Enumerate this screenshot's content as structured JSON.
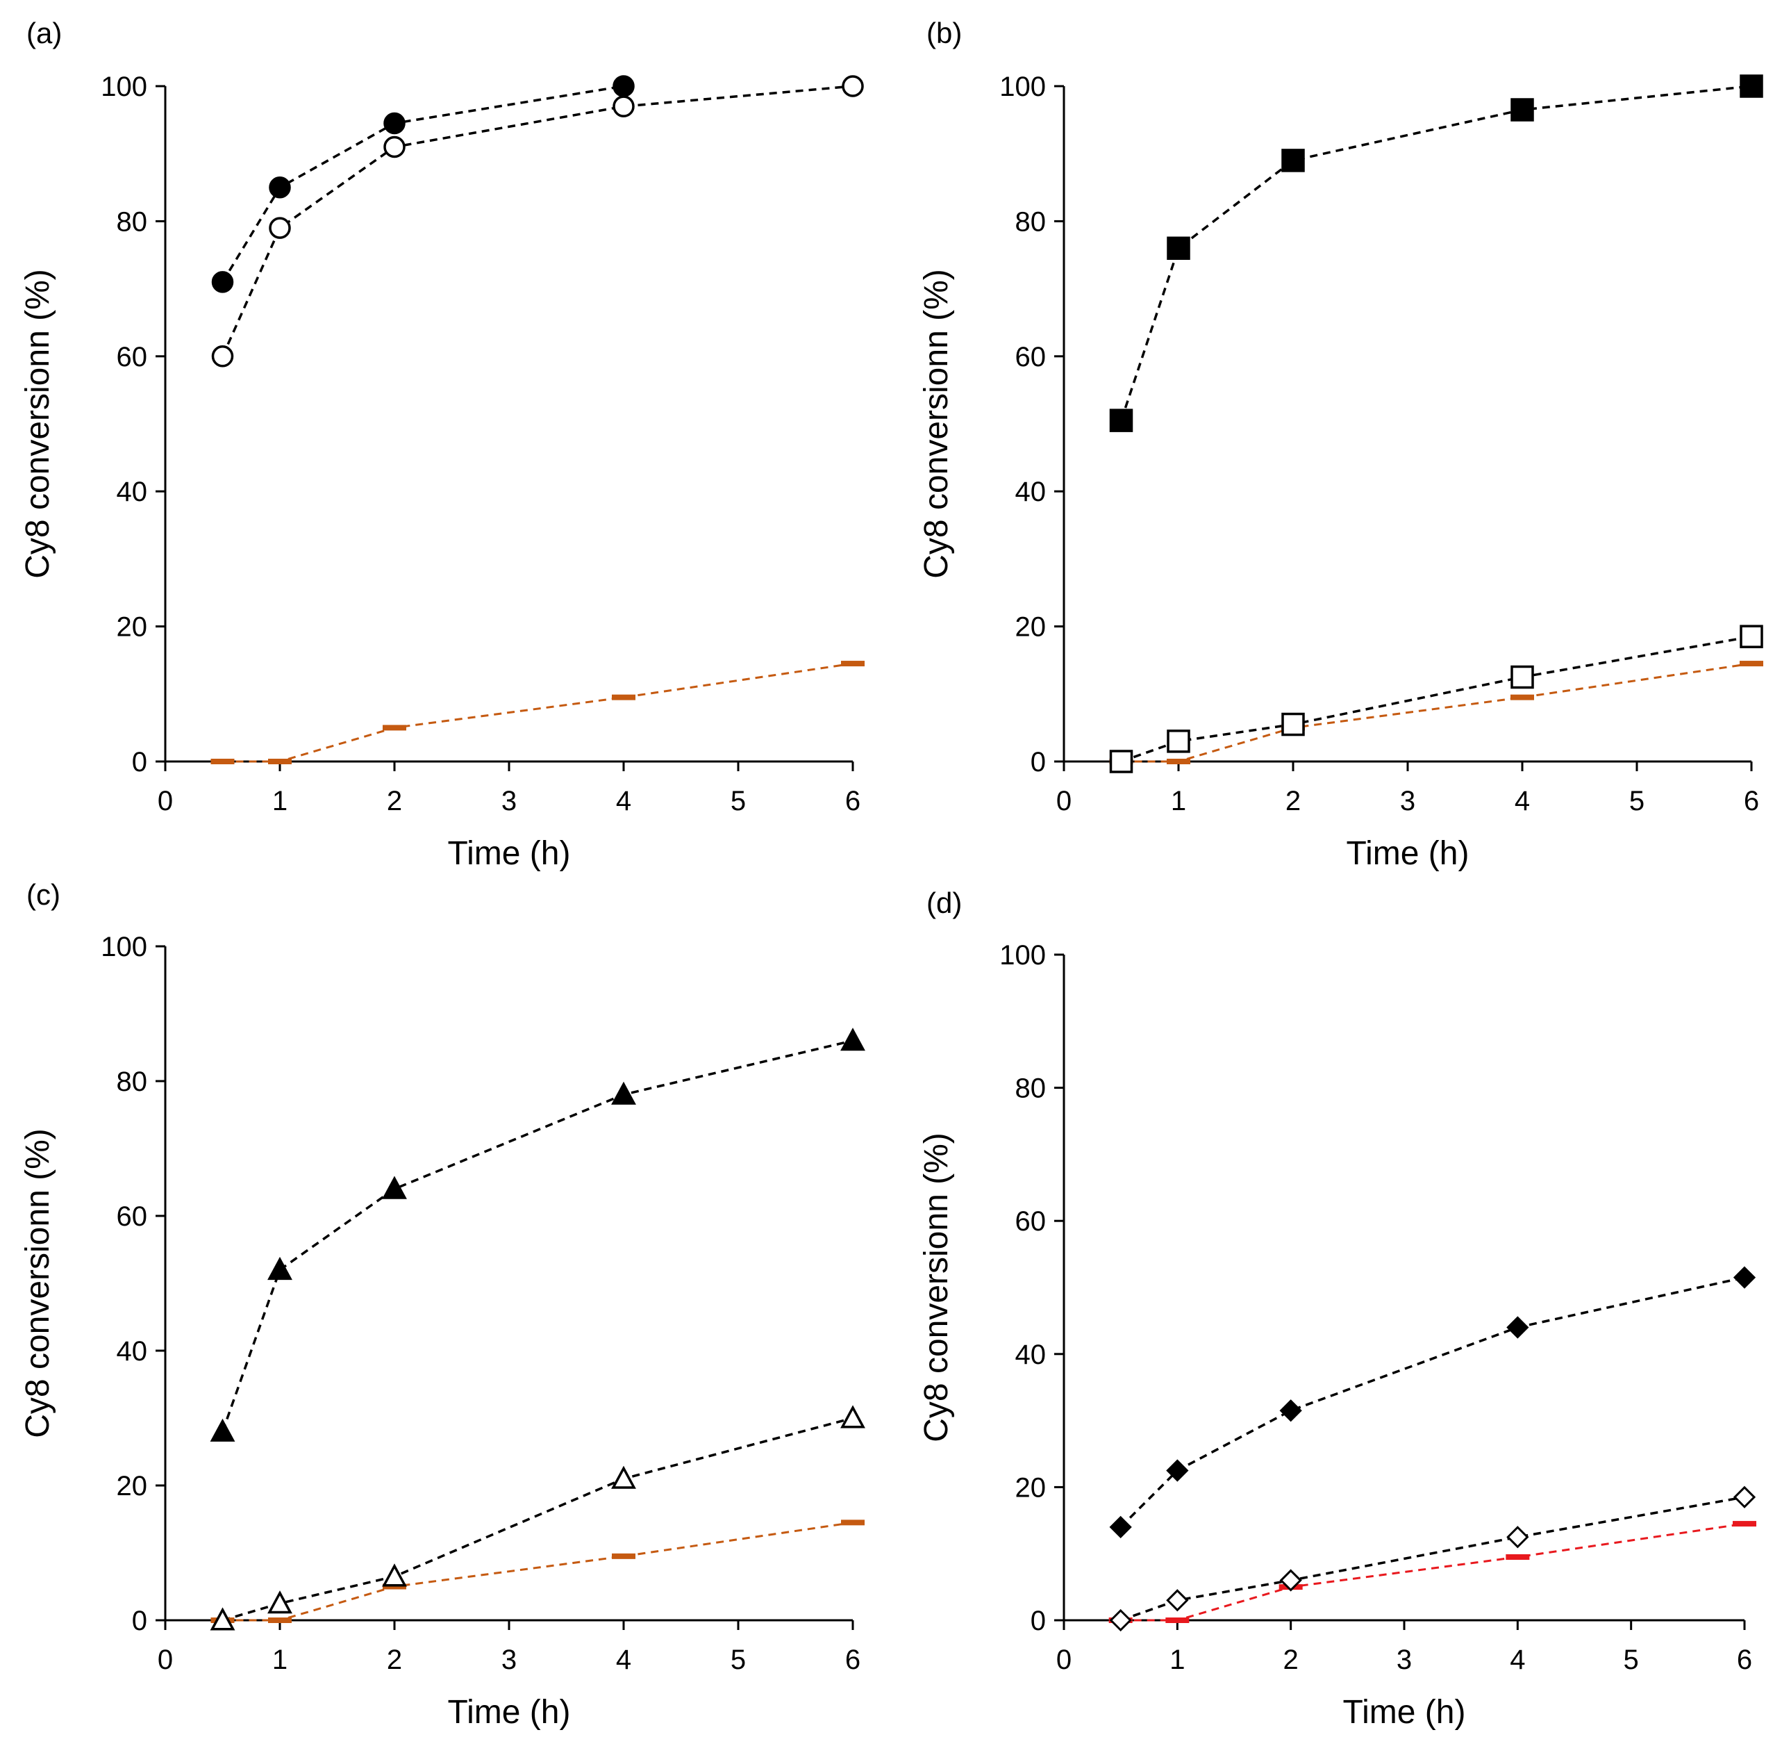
{
  "chart_data": [
    {
      "id": "a",
      "panel_label": "(a)",
      "type": "line",
      "xlabel": "Time (h)",
      "ylabel": "Cy8 conversionn (%)",
      "xlim": [
        0,
        6
      ],
      "ylim": [
        0,
        100
      ],
      "xticks": [
        0,
        1,
        2,
        3,
        4,
        5,
        6
      ],
      "yticks": [
        0,
        20,
        40,
        60,
        80,
        100
      ],
      "grid": false,
      "series": [
        {
          "name": "filled circle",
          "marker": "circle",
          "fill": true,
          "color": "#000000",
          "x": [
            0.5,
            1,
            2,
            4
          ],
          "y": [
            71,
            85,
            94.5,
            100
          ]
        },
        {
          "name": "open circle",
          "marker": "circle",
          "fill": false,
          "color": "#000000",
          "x": [
            0.5,
            1,
            2,
            4,
            6
          ],
          "y": [
            60,
            79,
            91,
            97,
            100
          ]
        },
        {
          "name": "blank",
          "marker": "dash",
          "fill": true,
          "color": "#c55a11",
          "x": [
            0.5,
            1,
            2,
            4,
            6
          ],
          "y": [
            0,
            0,
            5,
            9.5,
            14.5
          ]
        }
      ]
    },
    {
      "id": "b",
      "panel_label": "(b)",
      "type": "line",
      "xlabel": "Time (h)",
      "ylabel": "Cy8 conversionn (%)",
      "xlim": [
        0,
        6
      ],
      "ylim": [
        0,
        100
      ],
      "xticks": [
        0,
        1,
        2,
        3,
        4,
        5,
        6
      ],
      "yticks": [
        0,
        20,
        40,
        60,
        80,
        100
      ],
      "grid": false,
      "series": [
        {
          "name": "filled square",
          "marker": "square",
          "fill": true,
          "color": "#000000",
          "x": [
            0.5,
            1,
            2,
            4,
            6
          ],
          "y": [
            50.5,
            76,
            89,
            96.5,
            100
          ]
        },
        {
          "name": "open square",
          "marker": "square",
          "fill": false,
          "color": "#000000",
          "x": [
            0.5,
            1,
            2,
            4,
            6
          ],
          "y": [
            0,
            3,
            5.5,
            12.5,
            18.5
          ]
        },
        {
          "name": "blank",
          "marker": "dash",
          "fill": true,
          "color": "#c55a11",
          "x": [
            0.5,
            1,
            2,
            4,
            6
          ],
          "y": [
            0,
            0,
            5,
            9.5,
            14.5
          ]
        }
      ]
    },
    {
      "id": "c",
      "panel_label": "(c)",
      "type": "line",
      "xlabel": "Time (h)",
      "ylabel": "Cy8 conversionn (%)",
      "xlim": [
        0,
        6
      ],
      "ylim": [
        0,
        100
      ],
      "xticks": [
        0,
        1,
        2,
        3,
        4,
        5,
        6
      ],
      "yticks": [
        0,
        20,
        40,
        60,
        80,
        100
      ],
      "grid": false,
      "series": [
        {
          "name": "filled triangle",
          "marker": "triangle",
          "fill": true,
          "color": "#000000",
          "x": [
            0.5,
            1,
            2,
            4,
            6
          ],
          "y": [
            28,
            52,
            64,
            78,
            86
          ]
        },
        {
          "name": "open triangle",
          "marker": "triangle",
          "fill": false,
          "color": "#000000",
          "x": [
            0.5,
            1,
            2,
            4,
            6
          ],
          "y": [
            0,
            2.5,
            6.5,
            21,
            30
          ]
        },
        {
          "name": "blank",
          "marker": "dash",
          "fill": true,
          "color": "#c55a11",
          "x": [
            0.5,
            1,
            2,
            4,
            6
          ],
          "y": [
            0,
            0,
            5,
            9.5,
            14.5
          ]
        }
      ]
    },
    {
      "id": "d",
      "panel_label": "(d)",
      "type": "line",
      "xlabel": "Time (h)",
      "ylabel": "Cy8 conversionn (%)",
      "xlim": [
        0,
        6
      ],
      "ylim": [
        0,
        100
      ],
      "xticks": [
        0,
        1,
        2,
        3,
        4,
        5,
        6
      ],
      "yticks": [
        0,
        20,
        40,
        60,
        80,
        100
      ],
      "grid": false,
      "series": [
        {
          "name": "filled diamond",
          "marker": "diamond",
          "fill": true,
          "color": "#000000",
          "x": [
            0.5,
            1,
            2,
            4,
            6
          ],
          "y": [
            14,
            22.5,
            31.5,
            44,
            51.5
          ]
        },
        {
          "name": "open diamond",
          "marker": "diamond",
          "fill": false,
          "color": "#000000",
          "x": [
            0.5,
            1,
            2,
            4,
            6
          ],
          "y": [
            0,
            3,
            6,
            12.5,
            18.5
          ]
        },
        {
          "name": "blank",
          "marker": "dash",
          "fill": true,
          "color": "#e8191e",
          "x": [
            0.5,
            1,
            2,
            4,
            6
          ],
          "y": [
            0,
            0,
            5,
            9.5,
            14.5
          ]
        }
      ]
    }
  ]
}
